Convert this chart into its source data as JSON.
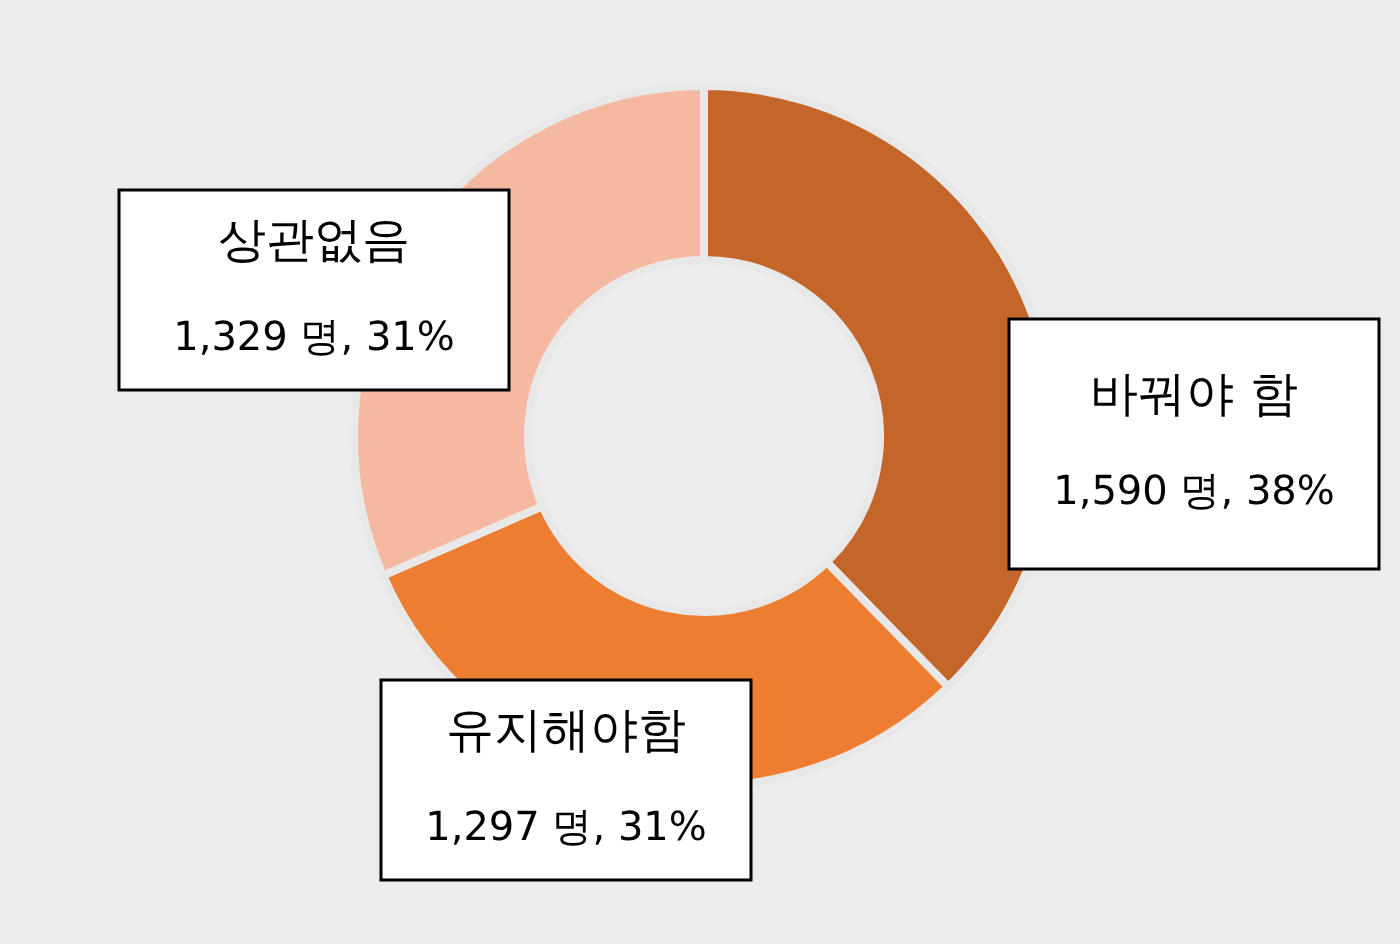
{
  "chart_data": {
    "type": "donut",
    "categories": [
      "바꿔야 함",
      "유지해야함",
      "상관없음"
    ],
    "values": [
      1590,
      1297,
      1329
    ],
    "colors": [
      "#c4652a",
      "#ed7d31",
      "#f5b8a1"
    ],
    "value_labels": [
      "1,590 명,  38%",
      "1,297 명,  31%",
      "1,329 명,  31%"
    ]
  }
}
